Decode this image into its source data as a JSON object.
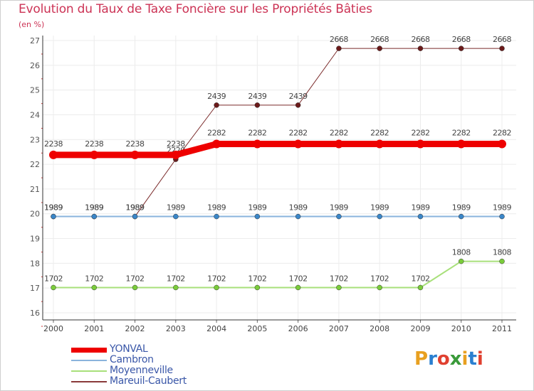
{
  "chart_data": {
    "type": "line",
    "title": "Evolution du Taux de Taxe Foncière sur les Propriétés Bâties",
    "unit_label": "(en %)",
    "categories": [
      "2000",
      "2001",
      "2002",
      "2003",
      "2004",
      "2005",
      "2006",
      "2007",
      "2008",
      "2009",
      "2010",
      "2011"
    ],
    "ylim": [
      16,
      27
    ],
    "yticks": [
      "16",
      "17",
      "18",
      "19",
      "20",
      "21",
      "22",
      "23",
      "24",
      "25",
      "26",
      "27"
    ],
    "series": [
      {
        "name": "Mareuil-Caubert",
        "color": "#7a2a2a",
        "marker": "#6b1a1a",
        "width": 1,
        "values": [
          19.89,
          19.89,
          19.89,
          22.2,
          24.39,
          24.39,
          24.39,
          26.68,
          26.68,
          26.68,
          26.68,
          26.68
        ],
        "labels": [
          "1989",
          "1989",
          "1989",
          "2220",
          "2439",
          "2439",
          "2439",
          "2668",
          "2668",
          "2668",
          "2668",
          "2668"
        ]
      },
      {
        "name": "Moyenneville",
        "color": "#a8e07a",
        "marker": "#7acc3a",
        "width": 2,
        "values": [
          17.02,
          17.02,
          17.02,
          17.02,
          17.02,
          17.02,
          17.02,
          17.02,
          17.02,
          17.02,
          18.08,
          18.08
        ],
        "labels": [
          "1702",
          "1702",
          "1702",
          "1702",
          "1702",
          "1702",
          "1702",
          "1702",
          "1702",
          "1702",
          "1808",
          "1808"
        ]
      },
      {
        "name": "Cambron",
        "color": "#8ab4dc",
        "marker": "#3a86c8",
        "width": 2,
        "values": [
          19.89,
          19.89,
          19.89,
          19.89,
          19.89,
          19.89,
          19.89,
          19.89,
          19.89,
          19.89,
          19.89,
          19.89
        ],
        "labels": [
          "1989",
          "1989",
          "1989",
          "1989",
          "1989",
          "1989",
          "1989",
          "1989",
          "1989",
          "1989",
          "1989",
          "1989"
        ]
      },
      {
        "name": "YONVAL",
        "color": "#ee0000",
        "marker": "#ee0000",
        "width": 9,
        "values": [
          22.38,
          22.38,
          22.38,
          22.38,
          22.82,
          22.82,
          22.82,
          22.82,
          22.82,
          22.82,
          22.82,
          22.82
        ],
        "labels": [
          "2238",
          "2238",
          "2238",
          "2238",
          "2282",
          "2282",
          "2282",
          "2282",
          "2282",
          "2282",
          "2282",
          "2282"
        ]
      }
    ]
  },
  "legend": [
    {
      "name": "YONVAL",
      "color": "#ee0000",
      "thickness": 7
    },
    {
      "name": "Cambron",
      "color": "#8ab4dc",
      "thickness": 2
    },
    {
      "name": "Moyenneville",
      "color": "#a8e07a",
      "thickness": 2
    },
    {
      "name": "Mareuil-Caubert",
      "color": "#8a3a3a",
      "thickness": 2
    }
  ],
  "logo": {
    "letters": [
      "P",
      "r",
      "o",
      "x",
      "i",
      "t",
      "i"
    ],
    "colors": [
      "#e8a020",
      "#2a7fd0",
      "#e04030",
      "#3a9a3a",
      "#e8a020",
      "#2a7fd0",
      "#e04030"
    ]
  }
}
